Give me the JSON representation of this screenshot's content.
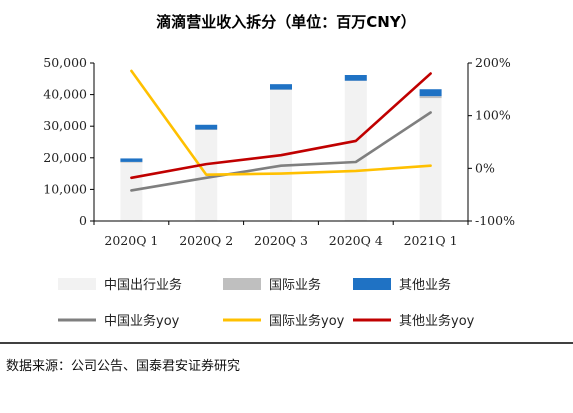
{
  "chart_data": {
    "type": "bar",
    "title": "滴滴营业收入拆分（单位：百万CNY）",
    "categories": [
      "2020Q 1",
      "2020Q 2",
      "2020Q 3",
      "2020Q 4",
      "2021Q 1"
    ],
    "left_axis": {
      "ylim": [
        0,
        50000
      ],
      "ticks": [
        "0",
        "10,000",
        "20,000",
        "30,000",
        "40,000",
        "50,000"
      ]
    },
    "right_axis": {
      "ylim": [
        -100,
        200
      ],
      "ticks": [
        "-100%",
        "0%",
        "100%",
        "200%"
      ]
    },
    "bar_series": [
      {
        "name": "中国出行业务",
        "color": "#f2f2f2",
        "values": [
          18500,
          28800,
          41500,
          44300,
          38900
        ]
      },
      {
        "name": "国际业务",
        "color": "#bfbfbf",
        "values": [
          200,
          150,
          100,
          100,
          600
        ]
      },
      {
        "name": "其他业务",
        "color": "#1f72c4",
        "values": [
          1100,
          1500,
          1700,
          1800,
          2200
        ]
      }
    ],
    "line_series": [
      {
        "name": "中国业务yoy",
        "color": "#7f7f7f",
        "values": [
          -42,
          -18,
          5,
          12,
          106
        ]
      },
      {
        "name": "国际业务yoy",
        "color": "#ffc000",
        "values": [
          185,
          -12,
          -10,
          -5,
          5
        ]
      },
      {
        "name": "其他业务yoy",
        "color": "#c00000",
        "values": [
          -18,
          8,
          25,
          52,
          180
        ]
      }
    ],
    "legend_position": "bottom",
    "grid": false
  },
  "source": "数据来源：公司公告、国泰君安证券研究"
}
